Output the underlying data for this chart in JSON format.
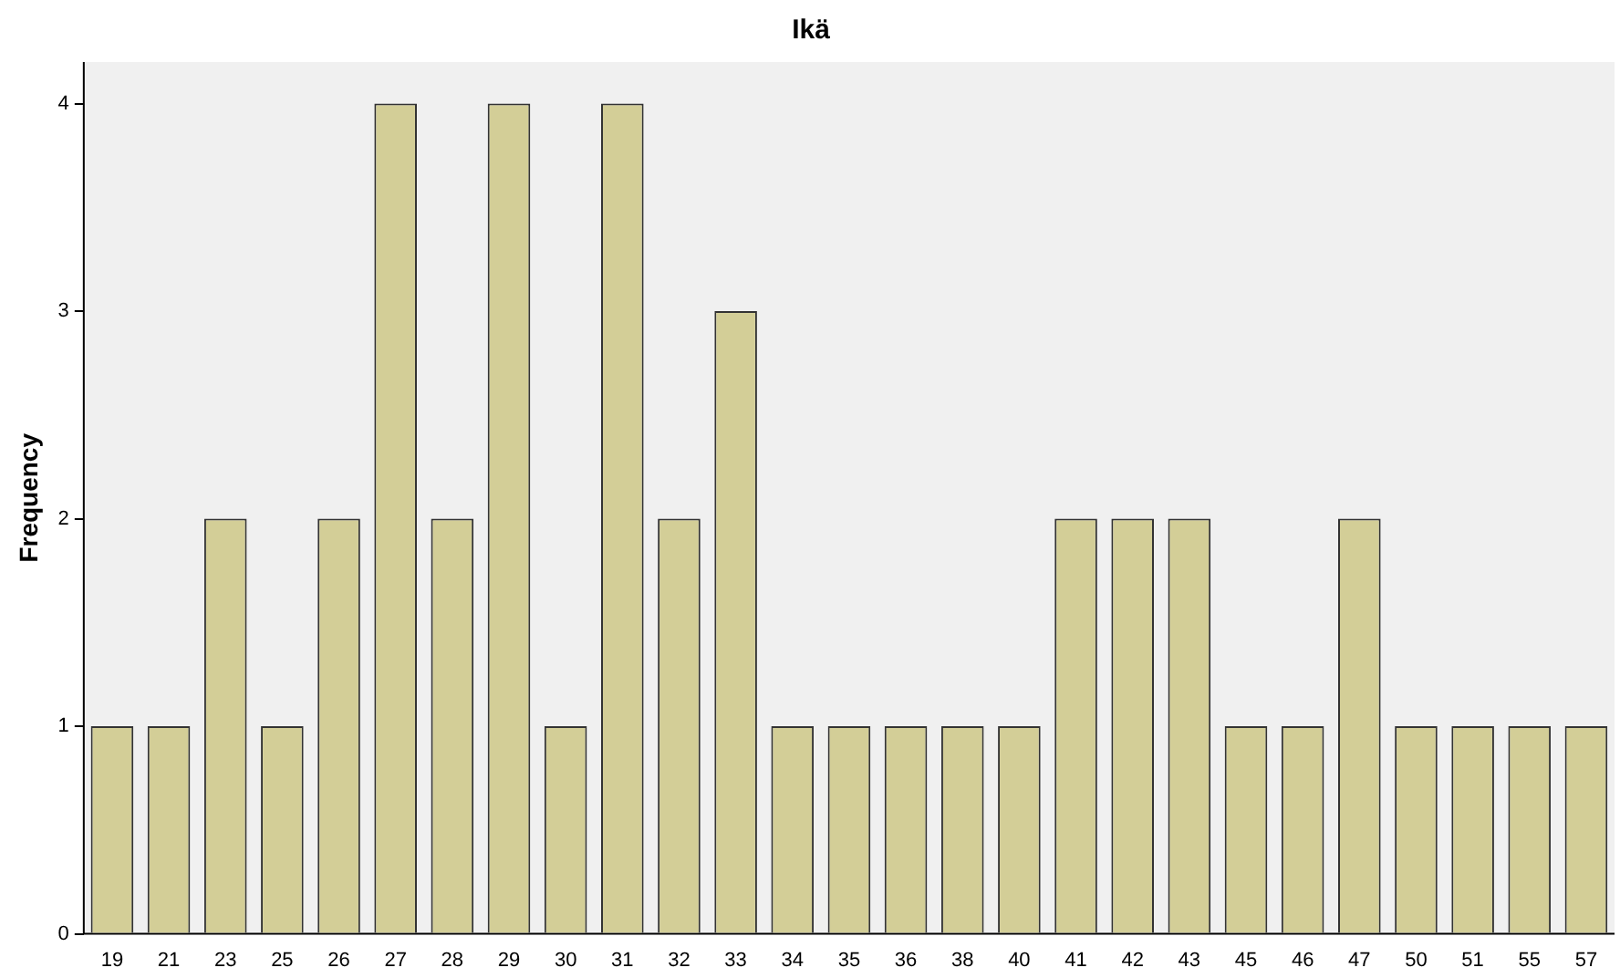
{
  "chart_data": {
    "type": "bar",
    "title": "Ikä",
    "ylabel": "Frequency",
    "categories": [
      "19",
      "21",
      "23",
      "25",
      "26",
      "27",
      "28",
      "29",
      "30",
      "31",
      "32",
      "33",
      "34",
      "35",
      "36",
      "38",
      "40",
      "41",
      "42",
      "43",
      "45",
      "46",
      "47",
      "50",
      "51",
      "55",
      "57"
    ],
    "values": [
      1,
      1,
      2,
      1,
      2,
      4,
      2,
      4,
      1,
      4,
      2,
      3,
      1,
      1,
      1,
      1,
      1,
      2,
      2,
      2,
      1,
      1,
      2,
      1,
      1,
      1,
      1
    ],
    "color": "#d3ce97",
    "ylim": [
      0,
      4.2
    ],
    "yticks": [
      0,
      1,
      2,
      3,
      4
    ],
    "grid": false,
    "legend": false
  }
}
